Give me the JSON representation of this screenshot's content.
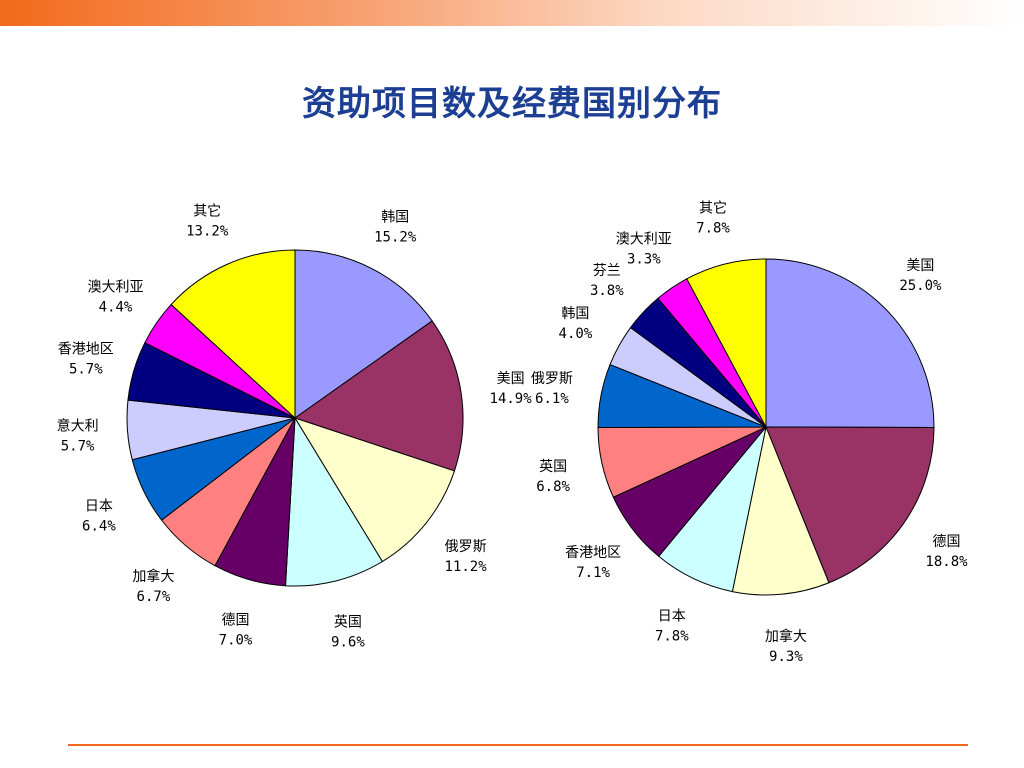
{
  "title": "资助项目数及经费国别分布",
  "chart_data": [
    {
      "type": "pie",
      "name": "",
      "slices": [
        {
          "label": "韩国",
          "value": 15.2,
          "display": "15.2%",
          "color": "#9999ff"
        },
        {
          "label": "美国",
          "value": 14.9,
          "display": "14.9%",
          "color": "#993366"
        },
        {
          "label": "俄罗斯",
          "value": 11.2,
          "display": "11.2%",
          "color": "#ffffcc"
        },
        {
          "label": "英国",
          "value": 9.6,
          "display": "9.6%",
          "color": "#ccffff"
        },
        {
          "label": "德国",
          "value": 7.0,
          "display": "7.0%",
          "color": "#660066"
        },
        {
          "label": "加拿大",
          "value": 6.7,
          "display": "6.7%",
          "color": "#ff8080"
        },
        {
          "label": "日本",
          "value": 6.4,
          "display": "6.4%",
          "color": "#0066cc"
        },
        {
          "label": "意大利",
          "value": 5.7,
          "display": "5.7%",
          "color": "#ccccff"
        },
        {
          "label": "香港地区",
          "value": 5.7,
          "display": "5.7%",
          "color": "#000080"
        },
        {
          "label": "澳大利亚",
          "value": 4.4,
          "display": "4.4%",
          "color": "#ff00ff"
        },
        {
          "label": "其它",
          "value": 13.2,
          "display": "13.2%",
          "color": "#ffff00"
        }
      ]
    },
    {
      "type": "pie",
      "name": "",
      "slices": [
        {
          "label": "美国",
          "value": 25.0,
          "display": "25.0%",
          "color": "#9999ff"
        },
        {
          "label": "德国",
          "value": 18.8,
          "display": "18.8%",
          "color": "#993366"
        },
        {
          "label": "加拿大",
          "value": 9.3,
          "display": "9.3%",
          "color": "#ffffcc"
        },
        {
          "label": "日本",
          "value": 7.8,
          "display": "7.8%",
          "color": "#ccffff"
        },
        {
          "label": "香港地区",
          "value": 7.1,
          "display": "7.1%",
          "color": "#660066"
        },
        {
          "label": "英国",
          "value": 6.8,
          "display": "6.8%",
          "color": "#ff8080"
        },
        {
          "label": "俄罗斯",
          "value": 6.1,
          "display": "6.1%",
          "color": "#0066cc"
        },
        {
          "label": "韩国",
          "value": 4.0,
          "display": "4.0%",
          "color": "#ccccff"
        },
        {
          "label": "芬兰",
          "value": 3.8,
          "display": "3.8%",
          "color": "#000080"
        },
        {
          "label": "澳大利亚",
          "value": 3.3,
          "display": "3.3%",
          "color": "#ff00ff"
        },
        {
          "label": "其它",
          "value": 7.8,
          "display": "7.8%",
          "color": "#ffff00"
        }
      ]
    }
  ]
}
